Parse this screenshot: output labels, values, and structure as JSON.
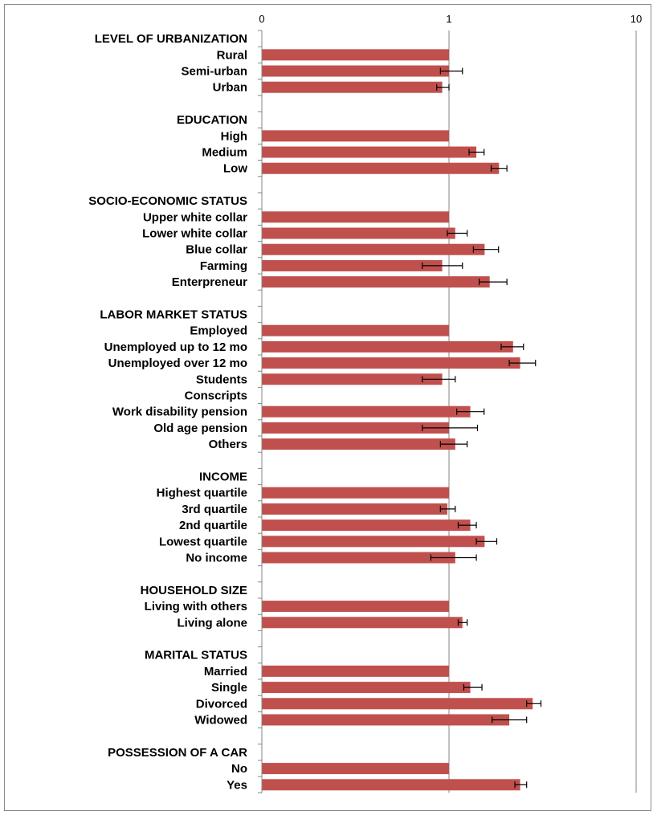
{
  "chart_data": {
    "type": "bar",
    "orientation": "horizontal",
    "x_scale": "log",
    "xlim": [
      0.1,
      10
    ],
    "x_tick_labels": [
      "0",
      "1",
      "10"
    ],
    "grid": "vertical gridlines at ticks",
    "bar_color": "#C0504D",
    "axis_color": "#868686",
    "error_bar_color": "#000000",
    "categories": [
      {
        "label": "LEVEL OF URBANIZATION",
        "header": true
      },
      {
        "label": "Rural",
        "value": 1.0
      },
      {
        "label": "Semi-urban",
        "value": 1.0,
        "ci": [
          0.9,
          1.18
        ]
      },
      {
        "label": "Urban",
        "value": 0.92,
        "ci": [
          0.86,
          1.0
        ]
      },
      {
        "label": "",
        "spacer": true
      },
      {
        "label": "EDUCATION",
        "header": true
      },
      {
        "label": "High",
        "value": 1.0
      },
      {
        "label": "Medium",
        "value": 1.4,
        "ci": [
          1.28,
          1.54
        ]
      },
      {
        "label": "Low",
        "value": 1.85,
        "ci": [
          1.68,
          2.04
        ]
      },
      {
        "label": "",
        "spacer": true
      },
      {
        "label": "SOCIO-ECONOMIC STATUS",
        "header": true
      },
      {
        "label": "Upper white collar",
        "value": 1.0
      },
      {
        "label": "Lower white collar",
        "value": 1.08,
        "ci": [
          0.98,
          1.25
        ]
      },
      {
        "label": "Blue collar",
        "value": 1.55,
        "ci": [
          1.35,
          1.84
        ]
      },
      {
        "label": "Farming",
        "value": 0.92,
        "ci": [
          0.72,
          1.18
        ]
      },
      {
        "label": "Enterpreneur",
        "value": 1.65,
        "ci": [
          1.45,
          2.04
        ]
      },
      {
        "label": "",
        "spacer": true
      },
      {
        "label": "LABOR MARKET STATUS",
        "header": true
      },
      {
        "label": "Employed",
        "value": 1.0
      },
      {
        "label": "Unemployed up to 12 mo",
        "value": 2.2,
        "ci": [
          1.9,
          2.5
        ]
      },
      {
        "label": "Unemployed over 12 mo",
        "value": 2.4,
        "ci": [
          2.1,
          2.9
        ]
      },
      {
        "label": "Students",
        "value": 0.92,
        "ci": [
          0.72,
          1.08
        ]
      },
      {
        "label": "Conscripts"
      },
      {
        "label": "Work disability pension",
        "value": 1.3,
        "ci": [
          1.1,
          1.54
        ]
      },
      {
        "label": "Old age pension",
        "value": 1.0,
        "ci": [
          0.72,
          1.42
        ]
      },
      {
        "label": "Others",
        "value": 1.08,
        "ci": [
          0.9,
          1.25
        ]
      },
      {
        "label": "",
        "spacer": true
      },
      {
        "label": "INCOME",
        "header": true
      },
      {
        "label": "Highest quartile",
        "value": 1.0
      },
      {
        "label": "3rd quartile",
        "value": 0.98,
        "ci": [
          0.9,
          1.08
        ]
      },
      {
        "label": "2nd quartile",
        "value": 1.3,
        "ci": [
          1.12,
          1.4
        ]
      },
      {
        "label": "Lowest quartile",
        "value": 1.55,
        "ci": [
          1.4,
          1.8
        ]
      },
      {
        "label": "No income",
        "value": 1.08,
        "ci": [
          0.8,
          1.4
        ]
      },
      {
        "label": "",
        "spacer": true
      },
      {
        "label": "HOUSEHOLD SIZE",
        "header": true
      },
      {
        "label": "Living with others",
        "value": 1.0
      },
      {
        "label": "Living alone",
        "value": 1.18,
        "ci": [
          1.12,
          1.25
        ]
      },
      {
        "label": "",
        "spacer": true
      },
      {
        "label": "MARITAL STATUS",
        "header": true
      },
      {
        "label": "Married",
        "value": 1.0
      },
      {
        "label": "Single",
        "value": 1.3,
        "ci": [
          1.2,
          1.5
        ]
      },
      {
        "label": "Divorced",
        "value": 2.8,
        "ci": [
          2.6,
          3.1
        ]
      },
      {
        "label": "Widowed",
        "value": 2.1,
        "ci": [
          1.7,
          2.6
        ]
      },
      {
        "label": "",
        "spacer": true
      },
      {
        "label": "POSSESSION OF A CAR",
        "header": true
      },
      {
        "label": "No",
        "value": 1.0
      },
      {
        "label": "Yes",
        "value": 2.4,
        "ci": [
          2.25,
          2.6
        ]
      }
    ]
  }
}
